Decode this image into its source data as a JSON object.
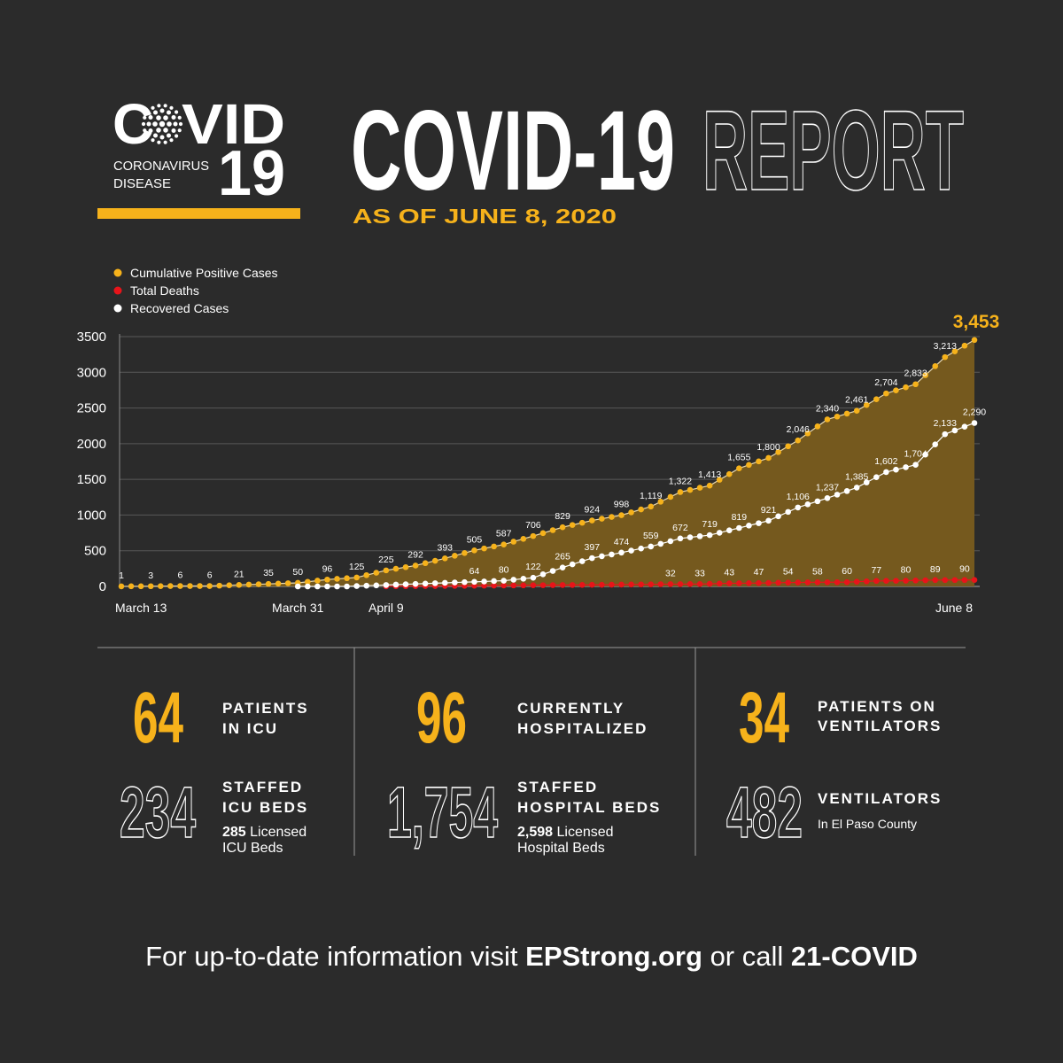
{
  "logo": {
    "left": "C",
    "right": "VID",
    "lines": [
      "CORONAVIRUS",
      "DISEASE"
    ],
    "number": "19"
  },
  "header": {
    "title": "COVID-19",
    "title_outline": "REPORT",
    "date": "AS OF JUNE 8, 2020"
  },
  "chart_data": {
    "type": "line",
    "categories": [
      "March 13",
      null,
      null,
      null,
      null,
      null,
      null,
      null,
      null,
      null,
      null,
      null,
      null,
      null,
      null,
      null,
      null,
      null,
      "March 31",
      null,
      null,
      null,
      null,
      null,
      null,
      null,
      null,
      "April 9",
      null,
      null,
      null,
      null,
      null,
      null,
      null,
      null,
      null,
      null,
      null,
      null,
      null,
      null,
      null,
      null,
      null,
      null,
      null,
      null,
      null,
      null,
      null,
      null,
      null,
      null,
      null,
      null,
      null,
      null,
      null,
      null,
      null,
      null,
      null,
      null,
      null,
      null,
      null,
      null,
      null,
      null,
      null,
      null,
      null,
      null,
      null,
      null,
      null,
      null,
      null,
      null,
      null,
      null,
      null,
      null,
      null,
      null,
      null,
      "June 8"
    ],
    "ylim": [
      0,
      3500
    ],
    "yticks": [
      0,
      500,
      1000,
      1500,
      2000,
      2500,
      3000,
      3500
    ],
    "grid": true,
    "series": [
      {
        "name": "Cumulative Positive Cases",
        "color": "#f6b21b",
        "area": "#75591e",
        "values": [
          1,
          2,
          2,
          3,
          4,
          5,
          6,
          6,
          6,
          6,
          11,
          16,
          21,
          26,
          30,
          35,
          40,
          45,
          50,
          65,
          81,
          96,
          106,
          115,
          125,
          158,
          192,
          225,
          247,
          270,
          292,
          326,
          359,
          393,
          430,
          468,
          505,
          532,
          560,
          587,
          627,
          666,
          706,
          747,
          788,
          829,
          861,
          892,
          924,
          949,
          973,
          998,
          1038,
          1079,
          1119,
          1187,
          1254,
          1322,
          1352,
          1383,
          1413,
          1494,
          1574,
          1655,
          1703,
          1752,
          1800,
          1882,
          1964,
          2046,
          2144,
          2242,
          2340,
          2380,
          2421,
          2461,
          2542,
          2623,
          2704,
          2747,
          2790,
          2833,
          2960,
          3086,
          3213,
          3293,
          3373,
          3453
        ],
        "value_labels": [
          "1",
          null,
          null,
          "3",
          null,
          null,
          "6",
          null,
          null,
          "6",
          null,
          null,
          "21",
          null,
          null,
          "35",
          null,
          null,
          "50",
          null,
          null,
          "96",
          null,
          null,
          "125",
          null,
          null,
          "225",
          null,
          null,
          "292",
          null,
          null,
          "393",
          null,
          null,
          "505",
          null,
          null,
          "587",
          null,
          null,
          "706",
          null,
          null,
          "829",
          null,
          null,
          "924",
          null,
          null,
          "998",
          null,
          null,
          "1,119",
          null,
          null,
          "1,322",
          null,
          null,
          "1,413",
          null,
          null,
          "1,655",
          null,
          null,
          "1,800",
          null,
          null,
          "2,046",
          null,
          null,
          "2,340",
          null,
          null,
          "2,461",
          null,
          null,
          "2,704",
          null,
          null,
          "2,833",
          null,
          null,
          "3,213",
          null,
          null,
          "3,453"
        ]
      },
      {
        "name": "Total Deaths",
        "color": "#e8141a",
        "values": [
          null,
          null,
          null,
          null,
          null,
          null,
          null,
          null,
          null,
          null,
          null,
          null,
          null,
          null,
          null,
          null,
          null,
          null,
          null,
          null,
          null,
          null,
          null,
          null,
          null,
          null,
          null,
          1,
          2,
          3,
          4,
          5,
          6,
          7,
          8,
          9,
          10,
          11,
          12,
          13,
          14,
          15,
          16,
          17,
          18,
          19,
          20,
          21,
          22,
          23,
          24,
          26,
          27,
          28,
          29,
          31,
          32,
          32,
          33,
          33,
          36,
          40,
          43,
          44,
          46,
          47,
          49,
          52,
          54,
          55,
          57,
          58,
          59,
          59,
          60,
          66,
          71,
          77,
          78,
          79,
          80,
          83,
          86,
          89,
          89,
          90,
          90,
          91
        ],
        "value_labels": [
          null,
          null,
          null,
          null,
          null,
          null,
          null,
          null,
          null,
          null,
          null,
          null,
          null,
          null,
          null,
          null,
          null,
          null,
          null,
          null,
          null,
          null,
          null,
          null,
          null,
          null,
          null,
          null,
          null,
          null,
          null,
          null,
          null,
          null,
          null,
          null,
          null,
          null,
          null,
          null,
          null,
          null,
          null,
          null,
          null,
          null,
          null,
          null,
          null,
          null,
          null,
          null,
          null,
          null,
          null,
          null,
          "32",
          null,
          null,
          "33",
          null,
          null,
          "43",
          null,
          null,
          "47",
          null,
          null,
          "54",
          null,
          null,
          "58",
          null,
          null,
          "60",
          null,
          null,
          "77",
          null,
          null,
          "80",
          null,
          null,
          "89",
          null,
          null,
          "90",
          null
        ]
      },
      {
        "name": "Recovered Cases",
        "color": "#ffffff",
        "values": [
          null,
          null,
          null,
          null,
          null,
          null,
          null,
          null,
          null,
          null,
          null,
          null,
          null,
          null,
          null,
          null,
          null,
          null,
          0,
          0,
          0,
          0,
          0,
          0,
          5,
          10,
          15,
          20,
          25,
          30,
          35,
          40,
          45,
          50,
          55,
          60,
          64,
          69,
          75,
          80,
          94,
          108,
          122,
          170,
          217,
          265,
          309,
          353,
          397,
          423,
          448,
          474,
          502,
          531,
          559,
          597,
          634,
          672,
          688,
          703,
          719,
          752,
          786,
          819,
          852,
          886,
          921,
          983,
          1044,
          1106,
          1150,
          1193,
          1237,
          1286,
          1336,
          1385,
          1457,
          1530,
          1602,
          1636,
          1670,
          1704,
          1847,
          1990,
          2133,
          2185,
          2238,
          2290
        ],
        "value_labels": [
          null,
          null,
          null,
          null,
          null,
          null,
          null,
          null,
          null,
          null,
          null,
          null,
          null,
          null,
          null,
          null,
          null,
          null,
          null,
          null,
          null,
          null,
          null,
          null,
          null,
          null,
          null,
          null,
          null,
          null,
          null,
          null,
          null,
          null,
          null,
          null,
          "64",
          null,
          null,
          "80",
          null,
          null,
          "122",
          null,
          null,
          "265",
          null,
          null,
          "397",
          null,
          null,
          "474",
          null,
          null,
          "559",
          null,
          null,
          "672",
          null,
          null,
          "719",
          null,
          null,
          "819",
          null,
          null,
          "921",
          null,
          null,
          "1,106",
          null,
          null,
          "1,237",
          null,
          null,
          "1,385",
          null,
          null,
          "1,602",
          null,
          null,
          "1,704",
          null,
          null,
          "2,133",
          null,
          null,
          "2,290"
        ]
      }
    ]
  },
  "stats": [
    {
      "primary": {
        "value": "64",
        "label": [
          "PATIENTS",
          "IN ICU"
        ]
      },
      "secondary": {
        "value": "234",
        "label": [
          "STAFFED",
          "ICU BEDS"
        ],
        "note_value": "285",
        "note": [
          "Licensed",
          "ICU Beds"
        ]
      }
    },
    {
      "primary": {
        "value": "96",
        "label": [
          "CURRENTLY",
          "HOSPITALIZED"
        ]
      },
      "secondary": {
        "value": "1,754",
        "label": [
          "STAFFED",
          "HOSPITAL BEDS"
        ],
        "note_value": "2,598",
        "note": [
          "Licensed",
          "Hospital Beds"
        ]
      }
    },
    {
      "primary": {
        "value": "34",
        "label": [
          "PATIENTS ON",
          "VENTILATORS"
        ]
      },
      "secondary": {
        "value": "482",
        "label": [
          "VENTILATORS"
        ],
        "note": [
          "In El Paso County"
        ]
      }
    }
  ],
  "footer": {
    "lead": "For up-to-date information visit",
    "site": "EPStrong.org",
    "mid": "or call",
    "phone": "21-COVID"
  }
}
